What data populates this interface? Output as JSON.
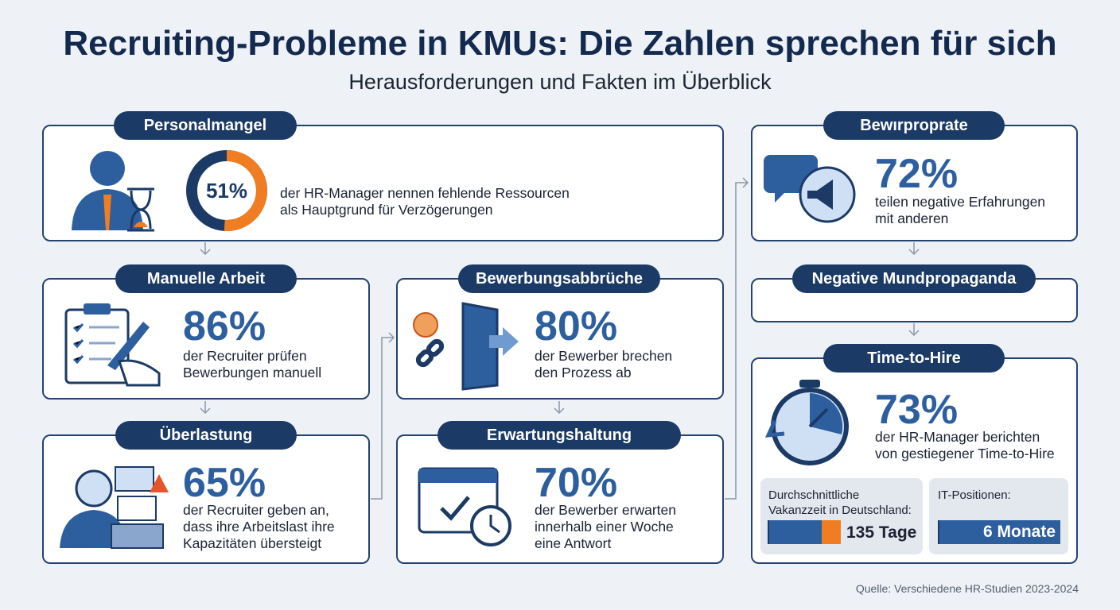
{
  "header": {
    "title": "Recruiting-Probleme in KMUs: Die Zahlen sprechen für sich",
    "subtitle": "Herausforderungen und Fakten im Überblick"
  },
  "cards": [
    {
      "label": "Personalmangel",
      "stat": {
        "value": 51,
        "label": "51%"
      },
      "text": [
        "der HR-Manager nennen fehlende Ressourcen",
        "als Hauptgrund für Verzögerungen"
      ]
    },
    {
      "label": "Manuelle Arbeit",
      "stat": "86%",
      "text": [
        "der Recruiter prüfen",
        "Bewerbungen manuell"
      ]
    },
    {
      "label": "Überlastung",
      "stat": "65%",
      "text": [
        "der Recruiter geben an,",
        "dass ihre Arbeitslast ihre",
        "Kapazitäten übersteigt"
      ]
    },
    {
      "label": "Bewerbungsabbrüche",
      "stat": "80%",
      "text": [
        "der Bewerber brechen",
        "den Prozess ab"
      ]
    },
    {
      "label": "Erwartungshaltung",
      "stat": "70%",
      "text": [
        "der Bewerber erwarten",
        "innerhalb einer Woche",
        "eine Antwort"
      ]
    },
    {
      "label": "Bewırproprate",
      "stat": "72%",
      "text": [
        "teilen negative Erfahrungen",
        "mit anderen"
      ]
    },
    {
      "label": "Negative Mundpropaganda"
    },
    {
      "label": "Time-to-Hire",
      "stat": "73%",
      "text": [
        "der HR-Manager berichten",
        "von gestiegener Time-to-Hire"
      ]
    }
  ],
  "vacancy": [
    {
      "label": [
        "Durchschnittliche",
        "Vakanzzeit in Deutschland:"
      ],
      "value": "135 Tage"
    },
    {
      "label": [
        "IT-Positionen:"
      ],
      "value": "6 Monate"
    }
  ],
  "source": "Quelle: Verschiedene HR-Studien 2023-2024"
}
